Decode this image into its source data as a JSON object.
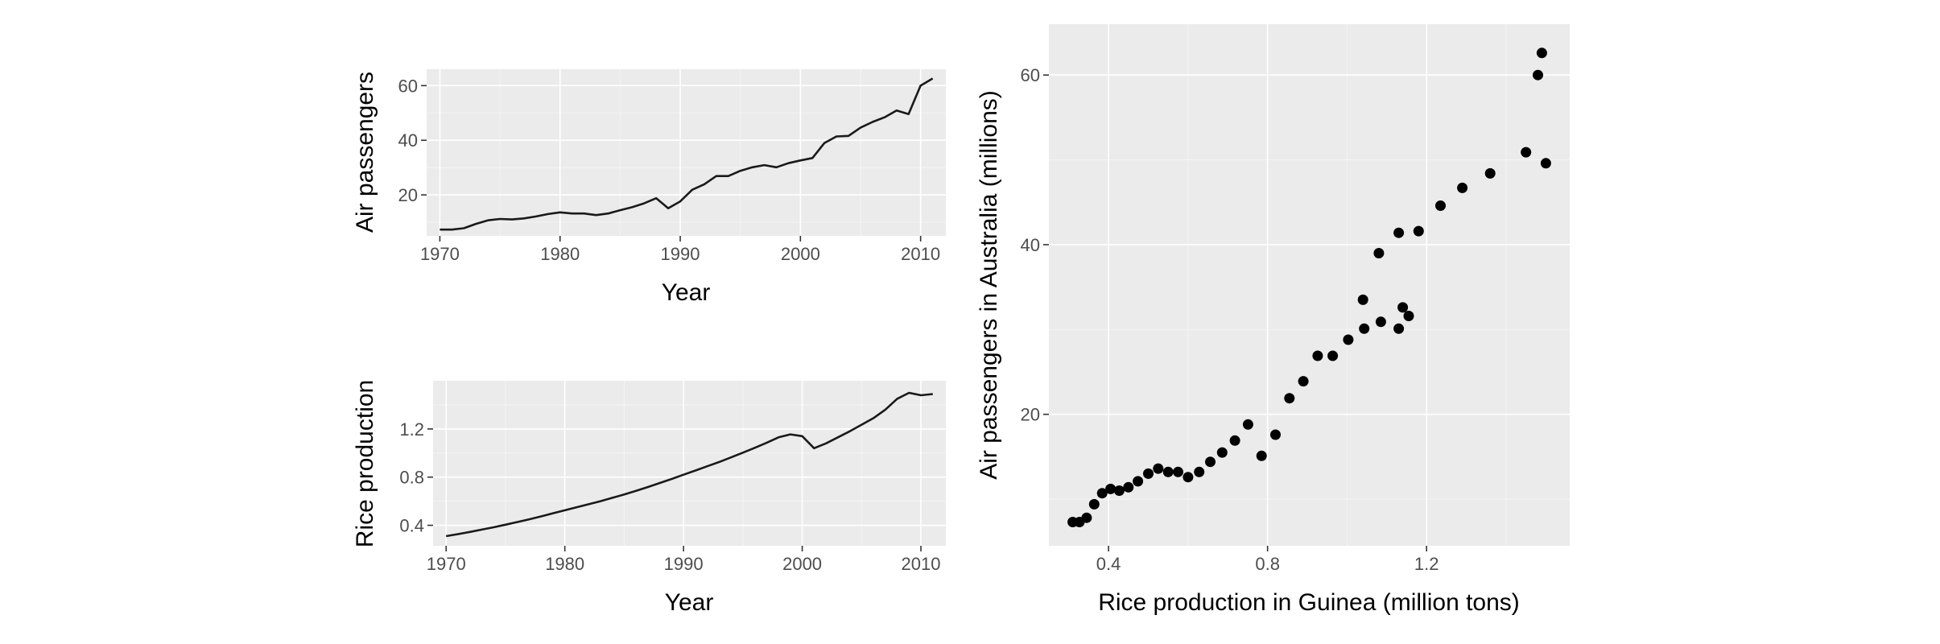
{
  "chart_data": [
    {
      "type": "line",
      "xlabel": "Year",
      "ylabel": "Air passengers",
      "xlim": [
        1968.9,
        2012.1
      ],
      "ylim": [
        5.0,
        66.0
      ],
      "xticks": [
        1970,
        1980,
        1990,
        2000,
        2010
      ],
      "yticks": [
        20,
        40,
        60
      ],
      "grid": true,
      "x": [
        1970,
        1971,
        1972,
        1973,
        1974,
        1975,
        1976,
        1977,
        1978,
        1979,
        1980,
        1981,
        1982,
        1983,
        1984,
        1985,
        1986,
        1987,
        1988,
        1989,
        1990,
        1991,
        1992,
        1993,
        1994,
        1995,
        1996,
        1997,
        1998,
        1999,
        2000,
        2001,
        2002,
        2003,
        2004,
        2005,
        2006,
        2007,
        2008,
        2009,
        2010,
        2011
      ],
      "series": [
        {
          "values": [
            7.3,
            7.3,
            7.8,
            9.4,
            10.7,
            11.2,
            11.0,
            11.4,
            12.1,
            13.0,
            13.6,
            13.2,
            13.2,
            12.6,
            13.2,
            14.4,
            15.5,
            16.9,
            18.8,
            15.1,
            17.6,
            21.9,
            23.9,
            26.9,
            26.9,
            28.8,
            30.1,
            30.9,
            30.1,
            31.6,
            32.6,
            33.5,
            39.0,
            41.4,
            41.6,
            44.6,
            46.7,
            48.4,
            50.9,
            49.6,
            60.0,
            62.6
          ]
        }
      ]
    },
    {
      "type": "line",
      "xlabel": "Year",
      "ylabel": "Rice production",
      "xlim": [
        1968.9,
        2012.1
      ],
      "ylim": [
        0.23,
        1.6
      ],
      "xticks": [
        1970,
        1980,
        1990,
        2000,
        2010
      ],
      "yticks": [
        0.4,
        0.8,
        1.2
      ],
      "grid": true,
      "x": [
        1970,
        1971,
        1972,
        1973,
        1974,
        1975,
        1976,
        1977,
        1978,
        1979,
        1980,
        1981,
        1982,
        1983,
        1984,
        1985,
        1986,
        1987,
        1988,
        1989,
        1990,
        1991,
        1992,
        1993,
        1994,
        1995,
        1996,
        1997,
        1998,
        1999,
        2000,
        2001,
        2002,
        2003,
        2004,
        2005,
        2006,
        2007,
        2008,
        2009,
        2010,
        2011
      ],
      "series": [
        {
          "values": [
            0.31,
            0.327,
            0.345,
            0.364,
            0.384,
            0.405,
            0.427,
            0.45,
            0.474,
            0.5,
            0.525,
            0.55,
            0.575,
            0.6,
            0.628,
            0.656,
            0.686,
            0.718,
            0.751,
            0.785,
            0.82,
            0.855,
            0.89,
            0.926,
            0.964,
            1.003,
            1.043,
            1.085,
            1.13,
            1.155,
            1.14,
            1.04,
            1.08,
            1.13,
            1.18,
            1.235,
            1.29,
            1.36,
            1.45,
            1.5,
            1.48,
            1.49
          ]
        }
      ]
    },
    {
      "type": "scatter",
      "xlabel": "Rice production in Guinea (million tons)",
      "ylabel": "Air passengers in Australia (millions)",
      "xlim": [
        0.25,
        1.56
      ],
      "ylim": [
        4.5,
        66.0
      ],
      "xticks": [
        0.4,
        0.8,
        1.2
      ],
      "yticks": [
        20,
        40,
        60
      ],
      "grid": true,
      "points": [
        [
          0.31,
          7.3
        ],
        [
          0.327,
          7.3
        ],
        [
          0.345,
          7.8
        ],
        [
          0.364,
          9.4
        ],
        [
          0.384,
          10.7
        ],
        [
          0.405,
          11.2
        ],
        [
          0.427,
          11.0
        ],
        [
          0.45,
          11.4
        ],
        [
          0.474,
          12.1
        ],
        [
          0.5,
          13.0
        ],
        [
          0.525,
          13.6
        ],
        [
          0.55,
          13.2
        ],
        [
          0.575,
          13.2
        ],
        [
          0.6,
          12.6
        ],
        [
          0.628,
          13.2
        ],
        [
          0.656,
          14.4
        ],
        [
          0.686,
          15.5
        ],
        [
          0.718,
          16.9
        ],
        [
          0.751,
          18.8
        ],
        [
          0.785,
          15.1
        ],
        [
          0.82,
          17.6
        ],
        [
          0.855,
          21.9
        ],
        [
          0.89,
          23.9
        ],
        [
          0.926,
          26.9
        ],
        [
          0.964,
          26.9
        ],
        [
          1.003,
          28.8
        ],
        [
          1.043,
          30.1
        ],
        [
          1.085,
          30.9
        ],
        [
          1.13,
          30.1
        ],
        [
          1.155,
          31.6
        ],
        [
          1.14,
          32.6
        ],
        [
          1.04,
          33.5
        ],
        [
          1.08,
          39.0
        ],
        [
          1.13,
          41.4
        ],
        [
          1.18,
          41.6
        ],
        [
          1.235,
          44.6
        ],
        [
          1.29,
          46.7
        ],
        [
          1.36,
          48.4
        ],
        [
          1.45,
          50.9
        ],
        [
          1.5,
          49.6
        ],
        [
          1.48,
          60.0
        ],
        [
          1.49,
          62.6
        ]
      ]
    }
  ]
}
